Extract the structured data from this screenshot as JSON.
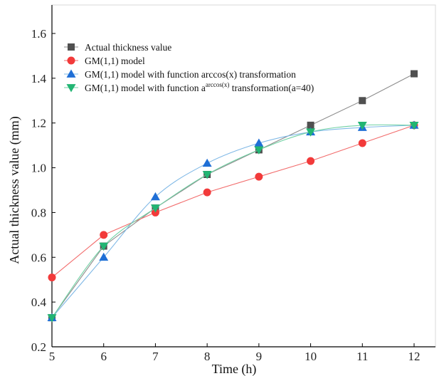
{
  "chart_data": {
    "type": "line",
    "x": [
      5,
      6,
      7,
      8,
      9,
      10,
      11,
      12
    ],
    "xlabel": "Time (h)",
    "ylabel": "Actual thickness value (mm)",
    "xlim": [
      5,
      12
    ],
    "ylim": [
      0.2,
      1.6
    ],
    "x_ticks": [
      "5",
      "6",
      "7",
      "8",
      "9",
      "10",
      "11",
      "12"
    ],
    "y_ticks": [
      "0.2",
      "0.4",
      "0.6",
      "0.8",
      "1.0",
      "1.2",
      "1.4",
      "1.6"
    ],
    "grid": false,
    "legend_position": "top-left",
    "series": [
      {
        "name": "Actual thickness value",
        "marker": "square",
        "color": "#505050",
        "line_color": "#8c8c8c",
        "smooth": false,
        "values": [
          0.33,
          0.65,
          0.82,
          0.97,
          1.08,
          1.19,
          1.3,
          1.42
        ]
      },
      {
        "name": "GM(1,1) model",
        "marker": "circle",
        "color": "#f23a3a",
        "line_color": "#f26b6b",
        "smooth": false,
        "values": [
          0.51,
          0.7,
          0.8,
          0.89,
          0.96,
          1.03,
          1.11,
          1.19
        ]
      },
      {
        "name": "GM(1,1) model with function arccos(x) transformation",
        "marker": "triangle-up",
        "color": "#1f6fd6",
        "line_color": "#7fb8e6",
        "smooth": true,
        "values": [
          0.33,
          0.6,
          0.87,
          1.02,
          1.11,
          1.16,
          1.18,
          1.19
        ]
      },
      {
        "name_parts": [
          "GM(1,1) model with function a",
          "arccos(x)",
          " transformation(a=40)"
        ],
        "marker": "triangle-down",
        "color": "#22b573",
        "line_color": "#6fd1a3",
        "smooth": true,
        "values": [
          0.33,
          0.65,
          0.82,
          0.97,
          1.08,
          1.16,
          1.19,
          1.19
        ]
      }
    ]
  }
}
